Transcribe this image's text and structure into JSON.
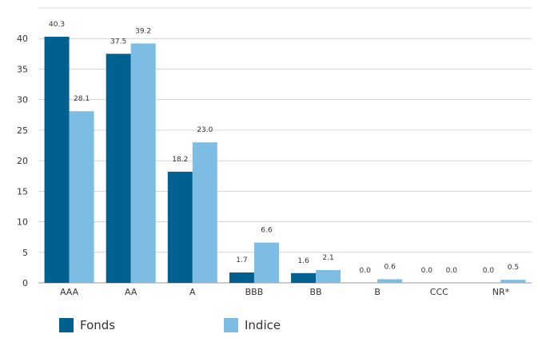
{
  "chart_data": {
    "type": "bar",
    "categories": [
      "AAA",
      "AA",
      "A",
      "BBB",
      "BB",
      "B",
      "CCC",
      "NR*"
    ],
    "series": [
      {
        "name": "Fonds",
        "color": "#00608f",
        "values": [
          40.3,
          37.5,
          18.2,
          1.7,
          1.6,
          0.0,
          0.0,
          0.0
        ],
        "labels": [
          "40.3",
          "37.5",
          "18.2",
          "1.7",
          "1.6",
          "0.0",
          "0.0",
          "0.0"
        ]
      },
      {
        "name": "Indice",
        "color": "#7ebde3",
        "values": [
          28.1,
          39.2,
          23.0,
          6.6,
          2.1,
          0.6,
          0.0,
          0.5
        ],
        "labels": [
          "28.1",
          "39.2",
          "23.0",
          "6.6",
          "2.1",
          "0.6",
          "0.0",
          "0.5"
        ]
      }
    ],
    "ylim": [
      0,
      45
    ],
    "yticks": [
      "0",
      "5",
      "10",
      "15",
      "20",
      "25",
      "30",
      "35",
      "40"
    ],
    "grid": true,
    "legend_position": "bottom-left"
  }
}
